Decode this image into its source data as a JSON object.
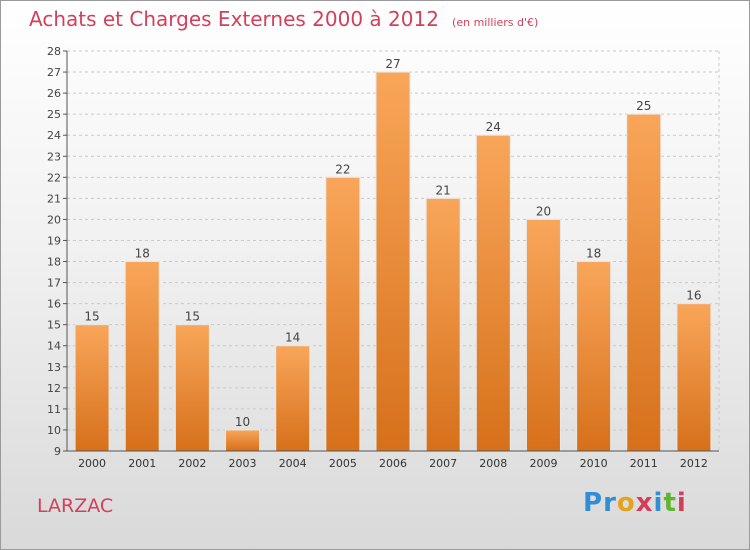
{
  "title": "Achats et Charges Externes 2000 à 2012",
  "subtitle": "(en milliers d'€)",
  "place": "LARZAC",
  "brand": {
    "letters": [
      "P",
      "r",
      "o",
      "x",
      "i",
      "t",
      "i"
    ],
    "colors": [
      "#2f8ed6",
      "#2f8ed6",
      "#e5a21c",
      "#d63c5a",
      "#2f8ed6",
      "#5fb52e",
      "#d63c5a"
    ]
  },
  "chart_data": {
    "type": "bar",
    "categories": [
      "2000",
      "2001",
      "2002",
      "2003",
      "2004",
      "2005",
      "2006",
      "2007",
      "2008",
      "2009",
      "2010",
      "2011",
      "2012"
    ],
    "values": [
      15,
      18,
      15,
      10,
      14,
      22,
      27,
      21,
      24,
      20,
      18,
      25,
      16
    ],
    "data_labels": [
      "15",
      "18",
      "15",
      "10",
      "14",
      "22",
      "27",
      "21",
      "24",
      "20",
      "18",
      "25",
      "16"
    ],
    "ylim": [
      9,
      28
    ],
    "yticks": [
      "9",
      "10",
      "11",
      "12",
      "13",
      "14",
      "15",
      "16",
      "17",
      "18",
      "19",
      "20",
      "21",
      "22",
      "23",
      "24",
      "25",
      "26",
      "27",
      "28"
    ],
    "grid": "horizontal dashed",
    "bar_color": "#f08a2c"
  }
}
